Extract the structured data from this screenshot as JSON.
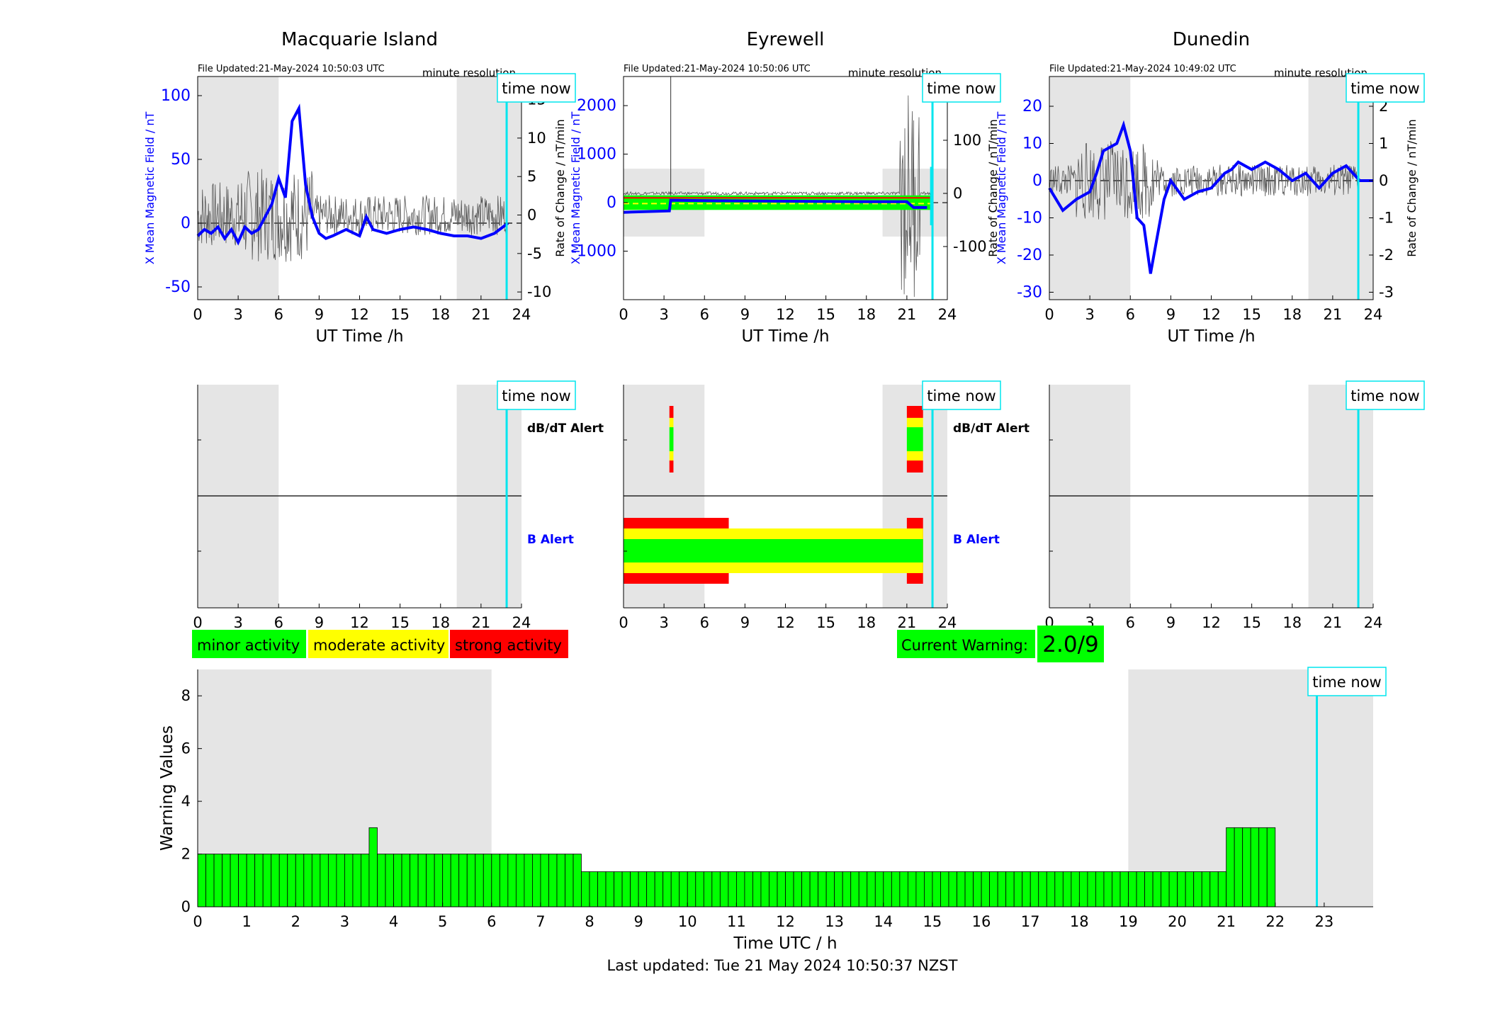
{
  "stations": [
    {
      "title": "Macquarie Island",
      "file_updated": "File Updated:21-May-2024 10:50:03 UTC",
      "resolution": "minute resolution",
      "time_now": "time now",
      "left_axis_label": "X Mean Magnetic Field / nT",
      "right_axis_label": "Rate of Change / nT/min",
      "xlabel": "UT Time /h",
      "xticks": [
        0,
        3,
        6,
        9,
        12,
        15,
        18,
        21,
        24
      ],
      "yticks_left": [
        -50,
        0,
        50,
        100
      ],
      "yticks_right": [
        -10,
        -5,
        0,
        5,
        10,
        15
      ],
      "dbdt_alert_label": "dB/dT Alert",
      "b_alert_label": "B Alert"
    },
    {
      "title": "Eyrewell",
      "file_updated": "File Updated:21-May-2024 10:50:06 UTC",
      "resolution": "minute resolution",
      "time_now": "time now",
      "left_axis_label": "X Mean Magnetic Field / nT",
      "right_axis_label": "Rate of Change / nT/min",
      "xlabel": "UT Time /h",
      "xticks": [
        0,
        3,
        6,
        9,
        12,
        15,
        18,
        21,
        24
      ],
      "yticks_left": [
        -1000,
        0,
        1000,
        2000
      ],
      "yticks_right": [
        -100,
        0,
        100,
        200
      ],
      "dbdt_alert_label": "dB/dT Alert",
      "b_alert_label": "B Alert"
    },
    {
      "title": "Dunedin",
      "file_updated": "File Updated:21-May-2024 10:49:02 UTC",
      "resolution": "minute resolution",
      "time_now": "time now",
      "left_axis_label": "X Mean Magnetic Field / nT",
      "right_axis_label": "Rate of Change / nT/min",
      "xlabel": "UT Time /h",
      "xticks": [
        0,
        3,
        6,
        9,
        12,
        15,
        18,
        21,
        24
      ],
      "yticks_left": [
        -30,
        -20,
        -10,
        0,
        10,
        20
      ],
      "yticks_right": [
        -3,
        -2,
        -1,
        0,
        1,
        2
      ],
      "dbdt_alert_label": "dB/dT Alert",
      "b_alert_label": "B Alert"
    }
  ],
  "legend": {
    "minor": "minor activity",
    "moderate": "moderate activity",
    "strong": "strong activity"
  },
  "current_warning": {
    "label": "Current Warning:",
    "value": "2.0/9"
  },
  "colors": {
    "minor": "#00ff00",
    "moderate": "#ffff00",
    "strong": "#ff0000",
    "time_now": "#00e5ee",
    "field_line": "#0000ff",
    "shade": "#e5e5e5"
  },
  "chart_data": [
    {
      "type": "line",
      "station": "Macquarie Island",
      "x": [
        0,
        0.5,
        1,
        1.5,
        2,
        2.5,
        3,
        3.5,
        4,
        4.5,
        5,
        5.5,
        6,
        6.5,
        7,
        7.5,
        8,
        8.5,
        9,
        9.5,
        10,
        11,
        12,
        12.5,
        13,
        14,
        15,
        16,
        17,
        18,
        19,
        20,
        21,
        22,
        23
      ],
      "series": [
        {
          "values": [
            -10,
            -5,
            -8,
            -3,
            -12,
            -5,
            -15,
            -3,
            -8,
            -5,
            5,
            15,
            35,
            20,
            80,
            90,
            30,
            5,
            -8,
            -12,
            -10,
            -5,
            -10,
            5,
            -5,
            -8,
            -5,
            -3,
            -5,
            -8,
            -10,
            -10,
            -12,
            -8,
            0
          ]
        }
      ],
      "ylim": [
        -60,
        115
      ],
      "y2lim": [
        -11,
        18
      ],
      "time_now_h": 22.9,
      "night_shading_h": [
        [
          0,
          6
        ],
        [
          19.2,
          24
        ]
      ]
    },
    {
      "type": "line",
      "station": "Eyrewell",
      "x": [
        0,
        3.4,
        3.5,
        6,
        12,
        18,
        21,
        21.5,
        22,
        22.5
      ],
      "series": [
        {
          "values": [
            -200,
            -170,
            50,
            40,
            30,
            20,
            20,
            -100,
            -100,
            -100
          ]
        }
      ],
      "ylim": [
        -2000,
        2600
      ],
      "y2lim": [
        -200,
        220
      ],
      "time_now_h": 22.9,
      "night_shading_h": [
        [
          0,
          6
        ],
        [
          19.2,
          24
        ]
      ]
    },
    {
      "type": "line",
      "station": "Dunedin",
      "x": [
        0,
        0.5,
        1,
        2,
        3,
        3.5,
        4,
        5,
        5.5,
        6,
        6.5,
        7,
        7.5,
        8,
        8.5,
        9,
        10,
        11,
        12,
        13,
        13.5,
        14,
        15,
        16,
        17,
        18,
        19,
        20,
        21,
        22,
        23
      ],
      "series": [
        {
          "values": [
            -2,
            -5,
            -8,
            -5,
            -3,
            2,
            8,
            10,
            15,
            8,
            -10,
            -12,
            -25,
            -15,
            -5,
            0,
            -5,
            -3,
            -2,
            2,
            3,
            5,
            3,
            5,
            3,
            0,
            2,
            -2,
            2,
            4,
            0
          ]
        }
      ],
      "ylim": [
        -32,
        28
      ],
      "y2lim": [
        -3.2,
        2.8
      ],
      "time_now_h": 22.9,
      "night_shading_h": [
        [
          0,
          6
        ],
        [
          19.2,
          24
        ]
      ]
    },
    {
      "type": "bar",
      "title": "",
      "xlabel": "Time UTC / h",
      "ylabel": "Warning Values",
      "xlim": [
        0,
        24
      ],
      "ylim": [
        0,
        9
      ],
      "xticks": [
        0,
        1,
        2,
        3,
        4,
        5,
        6,
        7,
        8,
        9,
        10,
        11,
        12,
        13,
        14,
        15,
        16,
        17,
        18,
        19,
        20,
        21,
        22,
        23
      ],
      "yticks": [
        0,
        2,
        4,
        6,
        8
      ],
      "bin_width_h": 0.1667,
      "segments": [
        {
          "from": 0,
          "to": 3.5,
          "value": 2
        },
        {
          "from": 3.5,
          "to": 3.667,
          "value": 3
        },
        {
          "from": 3.667,
          "to": 7.833,
          "value": 2
        },
        {
          "from": 7.833,
          "to": 21,
          "value": 1.33
        },
        {
          "from": 21,
          "to": 22,
          "value": 3
        }
      ],
      "time_now_h": 22.85,
      "night_shading_h": [
        [
          0,
          6
        ],
        [
          19,
          24
        ]
      ]
    }
  ],
  "footer": {
    "last_updated": "Last updated: Tue 21 May 2024 10:50:37 NZST"
  }
}
